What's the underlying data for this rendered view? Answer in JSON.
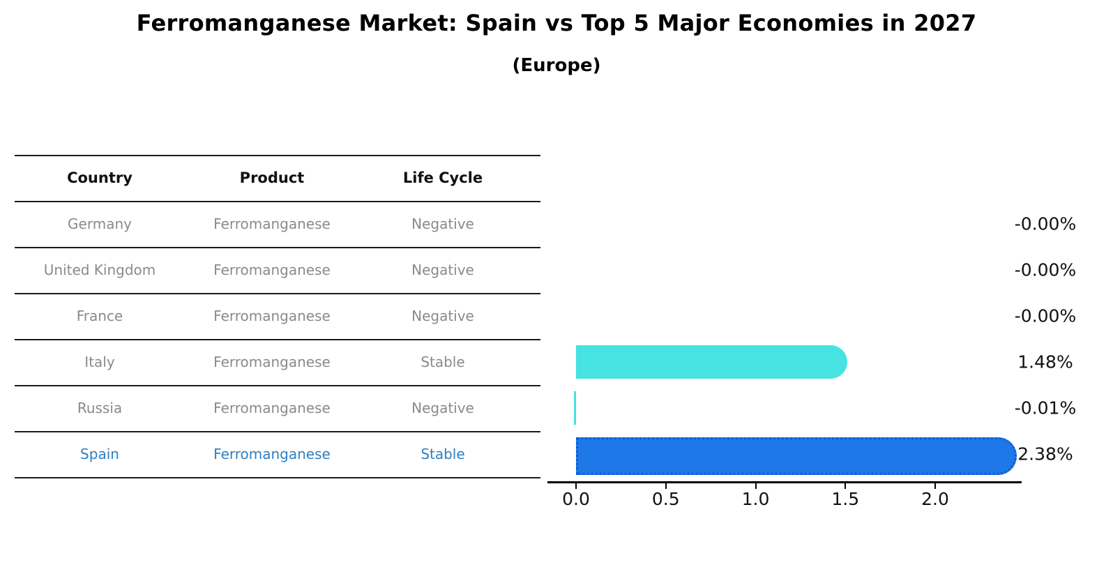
{
  "title": "Ferromanganese Market: Spain vs Top 5 Major Economies in 2027",
  "subtitle": "(Europe)",
  "table": {
    "headers": [
      "Country",
      "Product",
      "Life Cycle"
    ],
    "rows": [
      {
        "country": "Germany",
        "product": "Ferromanganese",
        "life_cycle": "Negative",
        "highlight": false
      },
      {
        "country": "United Kingdom",
        "product": "Ferromanganese",
        "life_cycle": "Negative",
        "highlight": false
      },
      {
        "country": "France",
        "product": "Ferromanganese",
        "life_cycle": "Negative",
        "highlight": false
      },
      {
        "country": "Italy",
        "product": "Ferromanganese",
        "life_cycle": "Stable",
        "highlight": false
      },
      {
        "country": "Russia",
        "product": "Ferromanganese",
        "life_cycle": "Negative",
        "highlight": false
      },
      {
        "country": "Spain",
        "product": "Ferromanganese",
        "life_cycle": "Stable",
        "highlight": true
      }
    ]
  },
  "chart_data": {
    "type": "bar",
    "orientation": "horizontal",
    "title": "Ferromanganese Market: Spain vs Top 5 Major Economies in 2027",
    "subtitle": "(Europe)",
    "categories": [
      "Germany",
      "United Kingdom",
      "France",
      "Italy",
      "Russia",
      "Spain"
    ],
    "values": [
      -0.0,
      -0.0,
      -0.0,
      1.48,
      -0.01,
      2.38
    ],
    "value_labels": [
      "-0.00%",
      "-0.00%",
      "-0.00%",
      "1.48%",
      "-0.01%",
      "2.38%"
    ],
    "bar_colors": [
      "none",
      "none",
      "none",
      "#47E2E2",
      "#47E2E2",
      "#1F78E8"
    ],
    "highlight_country": "Spain",
    "x_ticks": [
      0.0,
      0.5,
      1.0,
      1.5,
      2.0
    ],
    "x_tick_labels": [
      "0.0",
      "0.5",
      "1.0",
      "1.5",
      "2.0"
    ],
    "xlim": [
      -0.16,
      2.48
    ],
    "grid": false,
    "legend": false
  },
  "colors": {
    "highlight_text": "#2E7FC2",
    "muted_text": "#8A8A8A",
    "header_text": "#111111",
    "value_text": "#111111",
    "axis": "#000000",
    "cyan_bar": "#47E2E2",
    "spain_bar_fill": "#1F78E8",
    "spain_bar_border": "#0B5CD6"
  }
}
